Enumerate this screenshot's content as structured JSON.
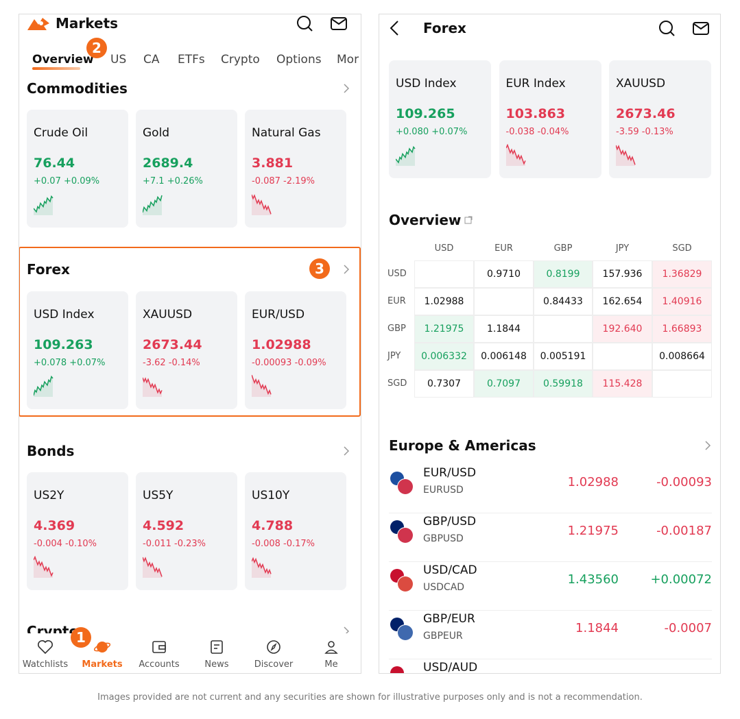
{
  "left": {
    "header": {
      "title": "Markets"
    },
    "tabs": [
      "Overview",
      "US",
      "CA",
      "ETFs",
      "Crypto",
      "Options",
      "Mor"
    ],
    "tab_badge": "2",
    "forex_badge": "3",
    "nav_badge": "1",
    "sections": [
      {
        "title": "Commodities",
        "cards": [
          {
            "name": "Crude Oil",
            "price": "76.44",
            "change": "+0.07 +0.09%"
          },
          {
            "name": "Gold",
            "price": "2689.4",
            "change": "+7.1 +0.26%"
          },
          {
            "name": "Natural Gas",
            "price": "3.881",
            "change": "-0.087 -2.19%"
          }
        ]
      },
      {
        "title": "Forex",
        "cards": [
          {
            "name": "USD Index",
            "price": "109.263",
            "change": "+0.078 +0.07%"
          },
          {
            "name": "XAUUSD",
            "price": "2673.44",
            "change": "-3.62 -0.14%"
          },
          {
            "name": "EUR/USD",
            "price": "1.02988",
            "change": "-0.00093 -0.09%"
          }
        ]
      },
      {
        "title": "Bonds",
        "cards": [
          {
            "name": "US2Y",
            "price": "4.369",
            "change": "-0.004 -0.10%"
          },
          {
            "name": "US5Y",
            "price": "4.592",
            "change": "-0.011 -0.23%"
          },
          {
            "name": "US10Y",
            "price": "4.788",
            "change": "-0.008 -0.17%"
          }
        ]
      },
      {
        "title": "Crypto"
      }
    ],
    "nav": [
      "Watchlists",
      "Markets",
      "Accounts",
      "News",
      "Discover",
      "Me"
    ]
  },
  "right": {
    "header": {
      "title": "Forex"
    },
    "cards": [
      {
        "name": "USD Index",
        "price": "109.265",
        "change": "+0.080 +0.07%"
      },
      {
        "name": "EUR Index",
        "price": "103.863",
        "change": "-0.038 -0.04%"
      },
      {
        "name": "XAUUSD",
        "price": "2673.46",
        "change": "-3.59 -0.13%"
      }
    ],
    "overview": {
      "title": "Overview",
      "columns": [
        "USD",
        "EUR",
        "GBP",
        "JPY",
        "SGD"
      ],
      "rows": [
        {
          "label": "USD",
          "cells": [
            null,
            "0.9710",
            "0.8199",
            "157.936",
            "1.36829"
          ],
          "tones": [
            null,
            null,
            "up",
            null,
            "down"
          ]
        },
        {
          "label": "EUR",
          "cells": [
            "1.02988",
            null,
            "0.84433",
            "162.654",
            "1.40916"
          ],
          "tones": [
            null,
            null,
            null,
            null,
            "down"
          ]
        },
        {
          "label": "GBP",
          "cells": [
            "1.21975",
            "1.1844",
            null,
            "192.640",
            "1.66893"
          ],
          "tones": [
            "up",
            null,
            null,
            "down",
            "down"
          ]
        },
        {
          "label": "JPY",
          "cells": [
            "0.006332",
            "0.006148",
            "0.005191",
            null,
            "0.008664"
          ],
          "tones": [
            "up",
            null,
            null,
            null,
            null
          ]
        },
        {
          "label": "SGD",
          "cells": [
            "0.7307",
            "0.7097",
            "0.59918",
            "115.428",
            null
          ],
          "tones": [
            null,
            "up",
            "up",
            "down",
            null
          ]
        }
      ]
    },
    "list": {
      "title": "Europe & Americas",
      "rows": [
        {
          "pair": "EUR/USD",
          "code": "EURUSD",
          "price": "1.02988",
          "change": "-0.00093"
        },
        {
          "pair": "GBP/USD",
          "code": "GBPUSD",
          "price": "1.21975",
          "change": "-0.00187"
        },
        {
          "pair": "USD/CAD",
          "code": "USDCAD",
          "price": "1.43560",
          "change": "+0.00072"
        },
        {
          "pair": "GBP/EUR",
          "code": "GBPEUR",
          "price": "1.1844",
          "change": "-0.0007"
        },
        {
          "pair": "USD/AUD"
        }
      ]
    }
  },
  "footer": "Images provided are not current and any securities are shown for illustrative purposes only and is not a recommendation."
}
